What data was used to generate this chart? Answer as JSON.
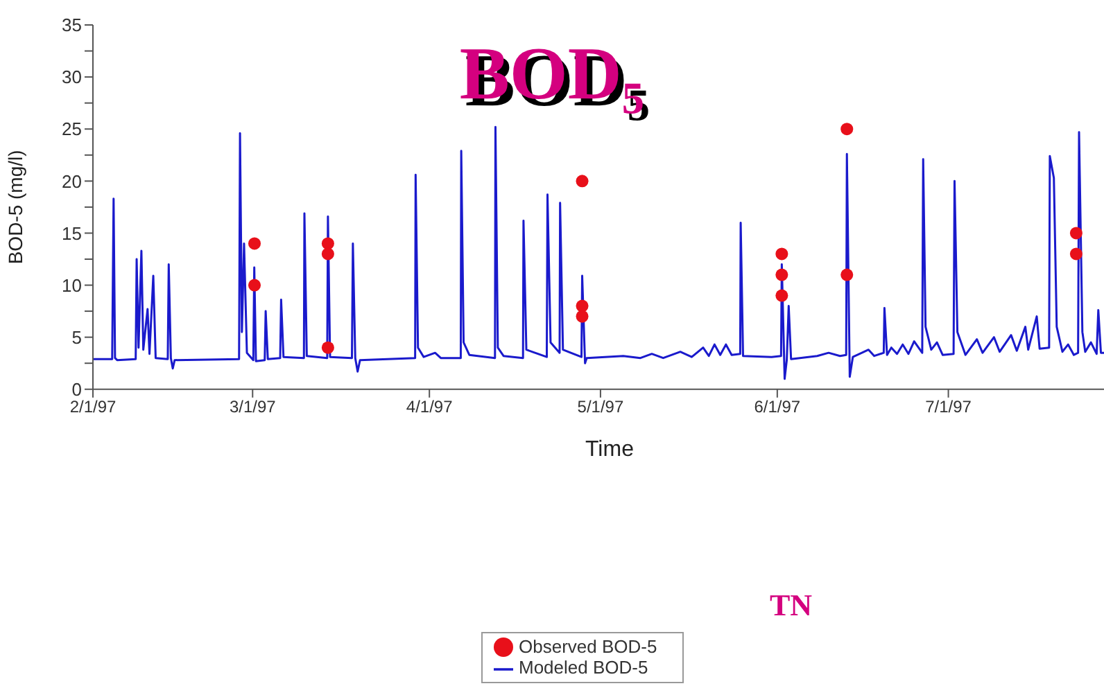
{
  "chart_data": {
    "type": "line",
    "title": "BOD₅",
    "xlabel": "Time",
    "ylabel": "BOD-5 (mg/l)",
    "annotations": [
      "TN"
    ],
    "legend": "bottom",
    "xlim": [
      "1997-02-01",
      "1997-07-28T07:00"
    ],
    "xticks": [
      {
        "value": "1997-02-01",
        "label": "2/1/97"
      },
      {
        "value": "1997-03-01",
        "label": "3/1/97"
      },
      {
        "value": "1997-04-01",
        "label": "4/1/97"
      },
      {
        "value": "1997-05-01",
        "label": "5/1/97"
      },
      {
        "value": "1997-06-01",
        "label": "6/1/97"
      },
      {
        "value": "1997-07-01",
        "label": "7/1/97"
      }
    ],
    "ylim": [
      0,
      35
    ],
    "yticks": [
      0,
      {
        "value": 2.5,
        "label": null
      },
      5,
      {
        "value": 7.5,
        "label": null
      },
      10,
      {
        "value": 12.5,
        "label": null
      },
      15,
      {
        "value": 17.5,
        "label": null
      },
      20,
      {
        "value": 22.5,
        "label": null
      },
      25,
      {
        "value": 27.5,
        "label": null
      },
      30,
      {
        "value": 32.5,
        "label": null
      },
      35
    ],
    "series": [
      {
        "name": "Observed BOD-5",
        "type": "scatter",
        "marker": "circle",
        "color": "#e8101a",
        "x": [
          "1997-03-01T08:00",
          "1997-03-01T08:00",
          "1997-03-14T05:00",
          "1997-03-14T05:00",
          "1997-03-14T05:00",
          "1997-04-27T19:00",
          "1997-04-27T19:00",
          "1997-04-27T19:00",
          "1997-06-01T19:00",
          "1997-06-01T19:00",
          "1997-06-01T19:00",
          "1997-06-13T05:00",
          "1997-06-13T05:00",
          "1997-07-23T10:00",
          "1997-07-23T10:00"
        ],
        "values": [
          14,
          10,
          14,
          13,
          4,
          20,
          8,
          7,
          13,
          11,
          9,
          25,
          11,
          15,
          13
        ]
      },
      {
        "name": "Modeled BOD-5",
        "color": "#1a1acc",
        "x": [
          "1997-02-01T00:00",
          "1997-02-04T09:00",
          "1997-02-04T15:00",
          "1997-02-04T21:00",
          "1997-02-05T06:00",
          "1997-02-08T12:00",
          "1997-02-08T16:00",
          "1997-02-09T00:00",
          "1997-02-09T12:00",
          "1997-02-09T20:00",
          "1997-02-10T14:00",
          "1997-02-10T22:00",
          "1997-02-11T14:00",
          "1997-02-12T00:00",
          "1997-02-14T03:00",
          "1997-02-14T07:00",
          "1997-02-14T16:00",
          "1997-02-15T00:00",
          "1997-02-15T08:00",
          "1997-02-26T15:00",
          "1997-02-26T19:00",
          "1997-02-27T03:00",
          "1997-02-27T12:00",
          "1997-02-28T00:00",
          "1997-03-01T03:00",
          "1997-03-01T07:00",
          "1997-03-01T14:00",
          "1997-03-03T03:00",
          "1997-03-03T07:00",
          "1997-03-03T16:00",
          "1997-03-05T20:00",
          "1997-03-06T00:00",
          "1997-03-06T10:00",
          "1997-03-10T00:00",
          "1997-03-10T02:00",
          "1997-03-10T12:00",
          "1997-03-14T02:00",
          "1997-03-14T05:00",
          "1997-03-14T14:00",
          "1997-03-18T10:00",
          "1997-03-18T14:00",
          "1997-03-19T00:00",
          "1997-03-19T10:00",
          "1997-03-19T20:00",
          "1997-03-29T12:00",
          "1997-03-29T14:00",
          "1997-03-30T00:00",
          "1997-03-31T00:00",
          "1997-04-02T00:00",
          "1997-04-03T00:00",
          "1997-04-06T12:00",
          "1997-04-06T14:00",
          "1997-04-07T00:00",
          "1997-04-08T00:00",
          "1997-04-12T12:00",
          "1997-04-12T14:00",
          "1997-04-13T00:00",
          "1997-04-14T00:00",
          "1997-04-17T10:00",
          "1997-04-17T12:00",
          "1997-04-18T00:00",
          "1997-04-21T14:00",
          "1997-04-21T17:00",
          "1997-04-22T06:00",
          "1997-04-23T20:00",
          "1997-04-23T22:00",
          "1997-04-24T10:00",
          "1997-04-27T16:00",
          "1997-04-27T19:00",
          "1997-04-28T07:00",
          "1997-04-28T14:00",
          "1997-05-05T00:00",
          "1997-05-08T00:00",
          "1997-05-10T00:00",
          "1997-05-12T00:00",
          "1997-05-15T00:00",
          "1997-05-17T00:00",
          "1997-05-19T00:00",
          "1997-05-20T00:00",
          "1997-05-21T00:00",
          "1997-05-22T00:00",
          "1997-05-23T00:00",
          "1997-05-24T00:00",
          "1997-05-25T12:00",
          "1997-05-25T14:00",
          "1997-05-26T00:00",
          "1997-05-31T00:00",
          "1997-06-01T16:00",
          "1997-06-01T19:00",
          "1997-06-02T07:00",
          "1997-06-02T16:00",
          "1997-06-03T00:00",
          "1997-06-03T10:00",
          "1997-06-08T00:00",
          "1997-06-10T00:00",
          "1997-06-12T00:00",
          "1997-06-13T02:00",
          "1997-06-13T05:00",
          "1997-06-13T17:00",
          "1997-06-14T06:00",
          "1997-06-17T00:00",
          "1997-06-18T00:00",
          "1997-06-19T16:00",
          "1997-06-19T19:00",
          "1997-06-20T06:00",
          "1997-06-21T00:00",
          "1997-06-22T00:00",
          "1997-06-23T00:00",
          "1997-06-24T00:00",
          "1997-06-25T00:00",
          "1997-06-26T10:00",
          "1997-06-26T14:00",
          "1997-06-27T00:00",
          "1997-06-28T00:00",
          "1997-06-29T00:00",
          "1997-06-30T00:00",
          "1997-07-01T22:00",
          "1997-07-02T02:00",
          "1997-07-02T14:00",
          "1997-07-04T00:00",
          "1997-07-06T00:00",
          "1997-07-07T00:00",
          "1997-07-09T00:00",
          "1997-07-10T00:00",
          "1997-07-12T00:00",
          "1997-07-13T00:00",
          "1997-07-14T12:00",
          "1997-07-15T00:00",
          "1997-07-16T12:00",
          "1997-07-17T00:00",
          "1997-07-18T16:00",
          "1997-07-18T19:00",
          "1997-07-19T12:00",
          "1997-07-20T00:00",
          "1997-07-21T00:00",
          "1997-07-22T00:00",
          "1997-07-23T00:00",
          "1997-07-23T18:00",
          "1997-07-23T22:00",
          "1997-07-24T12:00",
          "1997-07-25T00:00",
          "1997-07-26T00:00",
          "1997-07-27T00:00",
          "1997-07-27T07:00",
          "1997-07-27T18:00",
          "1997-07-28T07:00"
        ],
        "values": [
          2.9,
          2.9,
          18.3,
          3.0,
          2.8,
          2.9,
          12.5,
          4.0,
          13.3,
          3.8,
          7.7,
          3.4,
          10.9,
          3.0,
          2.9,
          12.0,
          3.0,
          2.0,
          2.8,
          2.9,
          24.6,
          5.5,
          14.0,
          3.5,
          2.8,
          11.7,
          2.7,
          2.8,
          7.5,
          2.9,
          3.0,
          8.6,
          3.1,
          3.0,
          16.9,
          3.2,
          3.0,
          16.6,
          3.1,
          3.0,
          14.0,
          3.0,
          1.7,
          2.8,
          3.0,
          20.6,
          4.0,
          3.1,
          3.5,
          3.0,
          3.0,
          22.9,
          4.5,
          3.3,
          3.0,
          25.2,
          4.0,
          3.2,
          3.0,
          16.2,
          3.8,
          3.1,
          18.7,
          4.5,
          3.5,
          17.9,
          3.8,
          3.1,
          10.9,
          2.5,
          3.0,
          3.2,
          3.0,
          3.4,
          3.0,
          3.6,
          3.1,
          4.0,
          3.2,
          4.3,
          3.3,
          4.3,
          3.3,
          3.4,
          16.0,
          3.2,
          3.1,
          3.2,
          12.0,
          1.0,
          2.8,
          8.0,
          2.9,
          3.2,
          3.5,
          3.2,
          3.3,
          22.6,
          1.2,
          3.1,
          3.8,
          3.2,
          3.5,
          7.8,
          3.3,
          4.0,
          3.4,
          4.3,
          3.4,
          4.6,
          3.5,
          22.1,
          6.0,
          3.8,
          4.5,
          3.3,
          3.4,
          20.0,
          5.5,
          3.3,
          4.8,
          3.5,
          5.0,
          3.6,
          5.2,
          3.7,
          6.0,
          3.8,
          7.0,
          3.9,
          4.0,
          22.4,
          20.3,
          6.0,
          3.6,
          4.3,
          3.3,
          3.5,
          24.7,
          5.5,
          3.6,
          4.5,
          3.4,
          7.6,
          3.5,
          3.5
        ]
      }
    ]
  }
}
